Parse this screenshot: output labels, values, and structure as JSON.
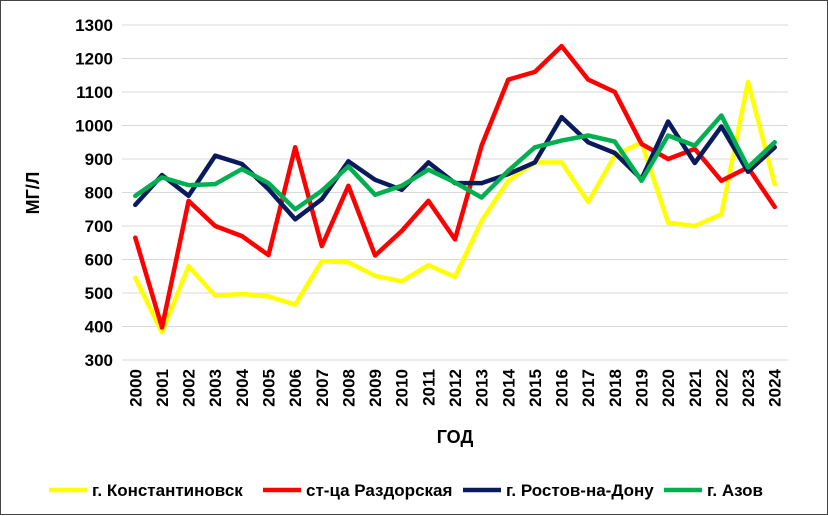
{
  "chart_data": {
    "type": "line",
    "title": "",
    "xlabel": "ГОД",
    "ylabel": "МГ/Л",
    "ylim": [
      300,
      1300
    ],
    "yticks": [
      300,
      400,
      500,
      600,
      700,
      800,
      900,
      1000,
      1100,
      1200,
      1300
    ],
    "grid": "horizontal",
    "legend_position": "bottom",
    "categories": [
      "2000",
      "2001",
      "2002",
      "2003",
      "2004",
      "2005",
      "2006",
      "2007",
      "2008",
      "2009",
      "2010",
      "2011",
      "2012",
      "2013",
      "2014",
      "2015",
      "2016",
      "2017",
      "2018",
      "2019",
      "2020",
      "2021",
      "2022",
      "2023",
      "2024"
    ],
    "series": [
      {
        "name": "г. Константиновск",
        "color": "#FFFF00",
        "values": [
          545,
          383,
          580,
          492,
          497,
          490,
          465,
          595,
          592,
          551,
          535,
          583,
          548,
          715,
          835,
          890,
          890,
          772,
          910,
          950,
          710,
          700,
          735,
          1130,
          825
        ]
      },
      {
        "name": "ст-ца Раздорская",
        "color": "#FF0000",
        "values": [
          665,
          397,
          775,
          700,
          670,
          613,
          935,
          640,
          820,
          612,
          685,
          775,
          660,
          940,
          1137,
          1160,
          1237,
          1137,
          1100,
          945,
          900,
          930,
          835,
          875,
          757
        ]
      },
      {
        "name": "г. Ростов-на-Дону",
        "color": "#0A1A5C",
        "values": [
          763,
          852,
          790,
          910,
          885,
          810,
          720,
          780,
          893,
          838,
          808,
          890,
          828,
          828,
          855,
          890,
          1025,
          950,
          918,
          840,
          1012,
          888,
          997,
          862,
          935
        ]
      },
      {
        "name": "г. Азов",
        "color": "#00B050",
        "values": [
          790,
          845,
          822,
          825,
          870,
          828,
          750,
          805,
          878,
          793,
          820,
          868,
          830,
          785,
          865,
          935,
          955,
          970,
          952,
          835,
          970,
          940,
          1030,
          875,
          950
        ]
      }
    ]
  }
}
